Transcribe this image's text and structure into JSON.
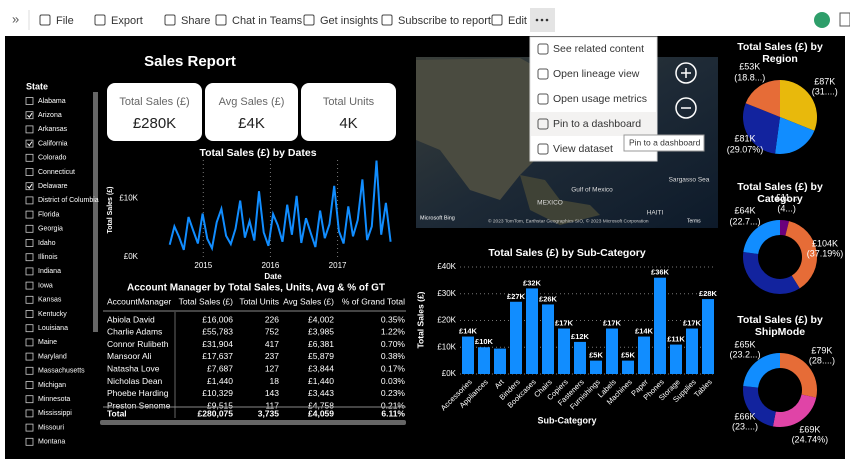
{
  "toolbar": {
    "items": [
      "File",
      "Export",
      "Share",
      "Chat in Teams",
      "Get insights",
      "Subscribe to report",
      "Edit"
    ]
  },
  "menu": {
    "items": [
      "See related content",
      "Open lineage view",
      "Open usage metrics",
      "Pin to a dashboard",
      "View dataset"
    ],
    "tooltip": "Pin to a dashboard"
  },
  "report": {
    "title": "Sales Report"
  },
  "slicer": {
    "title": "State",
    "items": [
      {
        "label": "Alabama",
        "checked": false
      },
      {
        "label": "Arizona",
        "checked": true
      },
      {
        "label": "Arkansas",
        "checked": false
      },
      {
        "label": "California",
        "checked": true
      },
      {
        "label": "Colorado",
        "checked": false
      },
      {
        "label": "Connecticut",
        "checked": false
      },
      {
        "label": "Delaware",
        "checked": true
      },
      {
        "label": "District of Columbia",
        "checked": false
      },
      {
        "label": "Florida",
        "checked": false
      },
      {
        "label": "Georgia",
        "checked": false
      },
      {
        "label": "Idaho",
        "checked": false
      },
      {
        "label": "Illinois",
        "checked": false
      },
      {
        "label": "Indiana",
        "checked": false
      },
      {
        "label": "Iowa",
        "checked": false
      },
      {
        "label": "Kansas",
        "checked": false
      },
      {
        "label": "Kentucky",
        "checked": false
      },
      {
        "label": "Louisiana",
        "checked": false
      },
      {
        "label": "Maine",
        "checked": false
      },
      {
        "label": "Maryland",
        "checked": false
      },
      {
        "label": "Massachusetts",
        "checked": false
      },
      {
        "label": "Michigan",
        "checked": false
      },
      {
        "label": "Minnesota",
        "checked": false
      },
      {
        "label": "Mississippi",
        "checked": false
      },
      {
        "label": "Missouri",
        "checked": false
      },
      {
        "label": "Montana",
        "checked": false
      }
    ]
  },
  "cards": [
    {
      "title": "Total Sales (£)",
      "value": "£280K"
    },
    {
      "title": "Avg Sales (£)",
      "value": "£4K"
    },
    {
      "title": "Total Units",
      "value": "4K"
    }
  ],
  "table": {
    "title": "Account Manager by Total Sales, Units, Avg & % of GT",
    "columns": [
      "AccountManager",
      "Total Sales (£)",
      "Total Units",
      "Avg Sales (£)",
      "% of Grand Total"
    ],
    "rows": [
      [
        "Abiola David",
        "£16,006",
        "226",
        "£4,002",
        "0.35%"
      ],
      [
        "Charlie Adams",
        "£55,783",
        "752",
        "£3,985",
        "1.22%"
      ],
      [
        "Connor Rulibeth",
        "£31,904",
        "417",
        "£6,381",
        "0.70%"
      ],
      [
        "Mansoor Ali",
        "£17,637",
        "237",
        "£5,879",
        "0.38%"
      ],
      [
        "Natasha Love",
        "£7,687",
        "127",
        "£3,844",
        "0.17%"
      ],
      [
        "Nicholas Dean",
        "£1,440",
        "18",
        "£1,440",
        "0.03%"
      ],
      [
        "Phoebe Harding",
        "£10,329",
        "143",
        "£3,443",
        "0.23%"
      ],
      [
        "Preston Senome",
        "£9,515",
        "117",
        "£4,758",
        "0.21%"
      ]
    ],
    "total": [
      "Total",
      "£280,075",
      "3,735",
      "£4,059",
      "6.11%"
    ]
  },
  "map": {
    "labels": [
      "MEXICO",
      "Gulf of Mexico",
      "Sargasso Sea",
      "HAITI"
    ],
    "logo": "Microsoft Bing",
    "attribution": "© 2023 TomTom, Earthstar Geographics SIO, © 2023 Microsoft Corporation",
    "terms": "Terms"
  },
  "chart_data": [
    {
      "type": "line",
      "title": "Total Sales (£) by Dates",
      "x_label": "Date",
      "y_label": "Total Sales (£)",
      "color": "#118dff",
      "grid": "x",
      "x": [
        2014.5,
        2014.57,
        2014.64,
        2014.71,
        2014.78,
        2014.85,
        2014.92,
        2014.99,
        2015.06,
        2015.13,
        2015.2,
        2015.27,
        2015.34,
        2015.41,
        2015.48,
        2015.55,
        2015.62,
        2015.69,
        2015.76,
        2015.83,
        2015.9,
        2015.97,
        2016.04,
        2016.11,
        2016.18,
        2016.25,
        2016.32,
        2016.39,
        2016.46,
        2016.53,
        2016.6,
        2016.67,
        2016.74,
        2016.81,
        2016.88,
        2016.95,
        2017.02,
        2017.09,
        2017.16,
        2017.23,
        2017.3,
        2017.37,
        2017.44,
        2017.51,
        2017.58,
        2017.65,
        2017.72,
        2017.79
      ],
      "values": [
        2100,
        5200,
        3400,
        1200,
        6800,
        4500,
        2300,
        7400,
        3100,
        1500,
        5900,
        8200,
        3600,
        2200,
        4800,
        9600,
        3300,
        6100,
        2800,
        11200,
        4200,
        1900,
        7300,
        5400,
        2600,
        8900,
        3800,
        10400,
        2400,
        6600,
        4100,
        1700,
        7900,
        3200,
        5600,
        12100,
        4400,
        2300,
        8600,
        3500,
        6300,
        13200,
        2900,
        5200,
        16400,
        3800,
        9200,
        2600
      ],
      "xlim": [
        2014.4,
        2017.9
      ],
      "xticks": [
        2015,
        2016,
        2017
      ],
      "ylim": [
        0,
        16500
      ],
      "yticks": [
        {
          "value": 0,
          "label": "£0K"
        },
        {
          "value": 10000,
          "label": "£10K"
        }
      ]
    },
    {
      "type": "bar",
      "title": "Total Sales (£) by Sub-Category",
      "x_label": "Sub-Category",
      "y_label": "Total Sales (£)",
      "color": "#118dff",
      "grid": "y",
      "categories": [
        "Accessories",
        "Appliances",
        "Art",
        "Binders",
        "Bookcases",
        "Chairs",
        "Copiers",
        "Fasteners",
        "Furnishings",
        "Labels",
        "Machines",
        "Paper",
        "Phones",
        "Storage",
        "Supplies",
        "Tables"
      ],
      "values": [
        14000,
        10000,
        9500,
        27000,
        32000,
        26000,
        17000,
        12000,
        5000,
        17000,
        5000,
        14000,
        36000,
        11000,
        17000,
        28000
      ],
      "value_labels": [
        "£14K",
        "£10K",
        null,
        "£27K",
        "£32K",
        "£26K",
        "£17K",
        "£12K",
        "£5K",
        "£17K",
        "£5K",
        "£14K",
        "£36K",
        "£11K",
        "£17K",
        "£28K"
      ],
      "ylim": [
        0,
        40000
      ],
      "yticks": [
        {
          "value": 0,
          "label": "£0K"
        },
        {
          "value": 10000,
          "label": "£10K"
        },
        {
          "value": 20000,
          "label": "£20K"
        },
        {
          "value": 30000,
          "label": "£30K"
        },
        {
          "value": 40000,
          "label": "£40K"
        }
      ]
    },
    {
      "type": "pie",
      "title": "Total Sales (£) by Region",
      "values": [
        87000,
        59000,
        81000,
        53000
      ],
      "colors": [
        "#e8b90c",
        "#118dff",
        "#12239e",
        "#e66c37"
      ],
      "value_labels": [
        "£87K\n(31....)",
        null,
        "£81K\n(29.07%)",
        "£53K\n(18.8...)"
      ]
    },
    {
      "type": "donut",
      "title": "Total Sales (£) by Category",
      "values": [
        11000,
        104000,
        101000,
        64000
      ],
      "colors": [
        "#6b007b",
        "#e66c37",
        "#12239e",
        "#118dff"
      ],
      "value_labels": [
        "£11...\n(4...)",
        "£104K\n(37.19%)",
        null,
        "£64K\n(22.7...)"
      ]
    },
    {
      "type": "donut",
      "title": "Total Sales (£) by ShipMode",
      "values": [
        79000,
        69000,
        66000,
        65000
      ],
      "colors": [
        "#e66c37",
        "#e044a7",
        "#12239e",
        "#118dff"
      ],
      "value_labels": [
        "£79K\n(28....)",
        "£69K\n(24.74%)",
        "£66K\n(23....)",
        "£65K\n(23.2...)"
      ]
    }
  ]
}
